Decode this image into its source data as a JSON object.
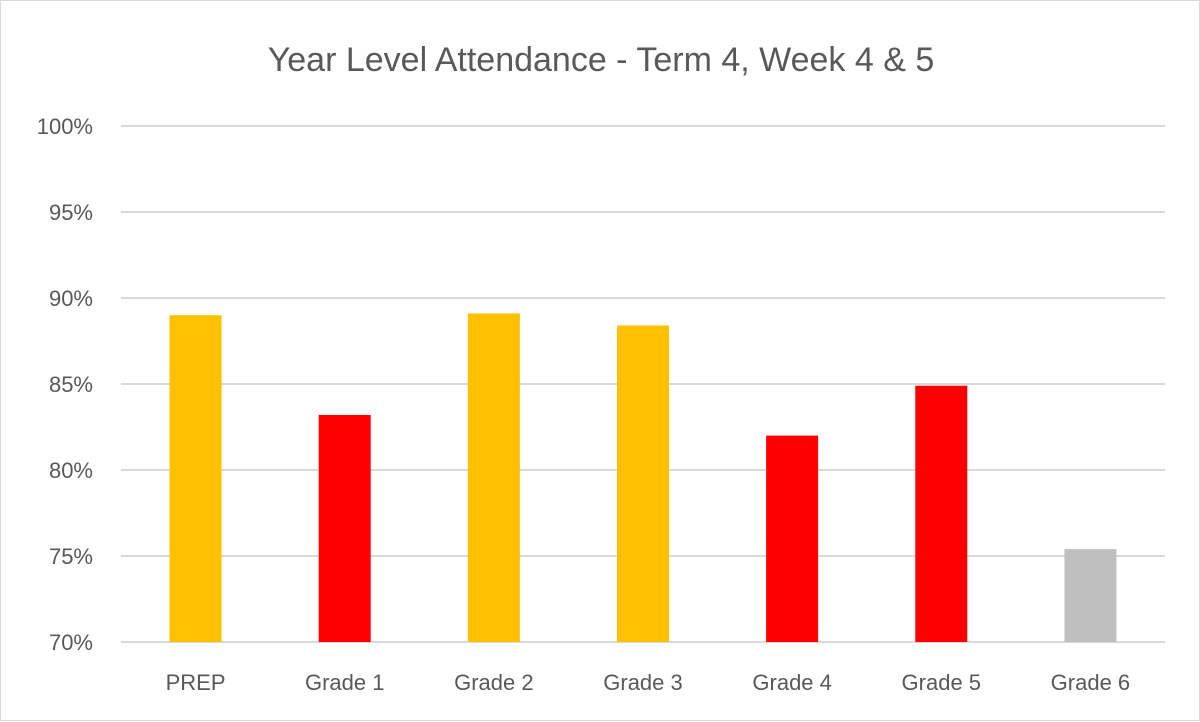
{
  "chart_data": {
    "type": "bar",
    "title": "Year Level Attendance - Term 4, Week 4 & 5",
    "xlabel": "",
    "ylabel": "",
    "ylim": [
      70,
      100
    ],
    "yticks": [
      70,
      75,
      80,
      85,
      90,
      95,
      100
    ],
    "ytick_labels": [
      "70%",
      "75%",
      "80%",
      "85%",
      "90%",
      "95%",
      "100%"
    ],
    "grid": true,
    "categories": [
      "PREP",
      "Grade 1",
      "Grade 2",
      "Grade 3",
      "Grade 4",
      "Grade 5",
      "Grade 6"
    ],
    "values": [
      89.0,
      83.2,
      89.1,
      88.4,
      82.0,
      84.9,
      75.4
    ],
    "bar_colors": [
      "#FFC000",
      "#FF0000",
      "#FFC000",
      "#FFC000",
      "#FF0000",
      "#FF0000",
      "#BFBFBF"
    ]
  }
}
